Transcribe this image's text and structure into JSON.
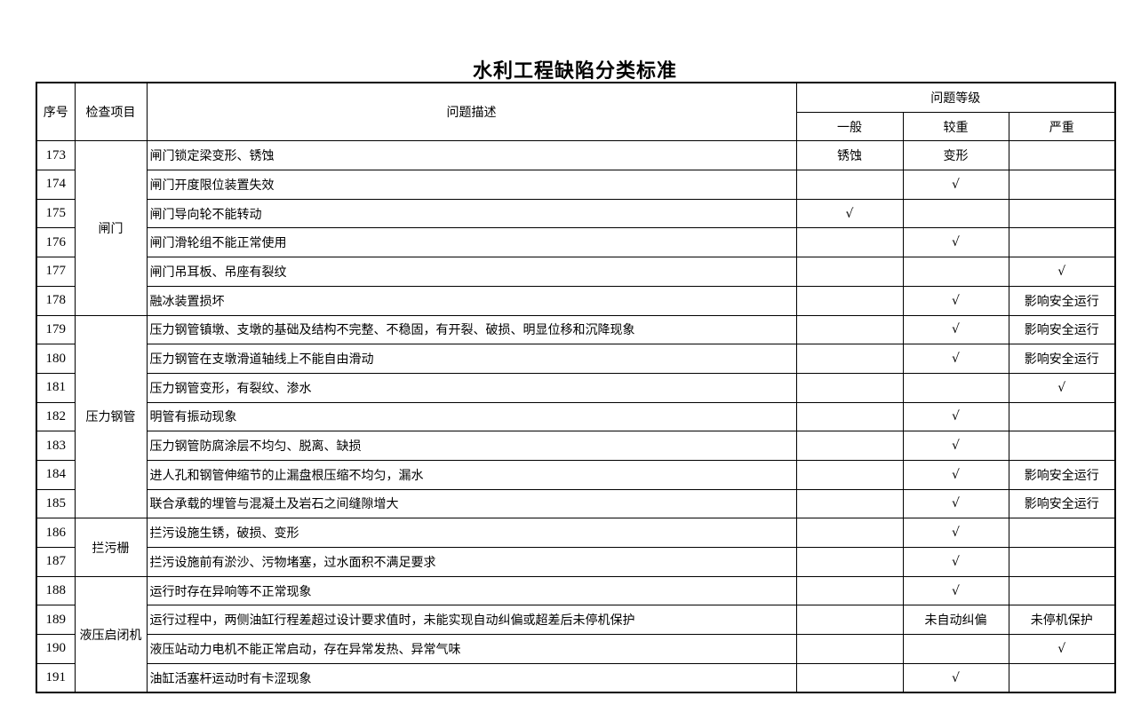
{
  "title": "水利工程缺陷分类标准",
  "headers": {
    "seq": "序号",
    "item": "检查项目",
    "desc": "问题描述",
    "level": "问题等级",
    "general": "一般",
    "serious": "较重",
    "severe": "严重"
  },
  "groups": [
    {
      "name": "闸门",
      "rows": [
        {
          "seq": "173",
          "desc": "闸门锁定梁变形、锈蚀",
          "general": "锈蚀",
          "serious": "变形",
          "severe": ""
        },
        {
          "seq": "174",
          "desc": "闸门开度限位装置失效",
          "general": "",
          "serious": "√",
          "severe": ""
        },
        {
          "seq": "175",
          "desc": "闸门导向轮不能转动",
          "general": "√",
          "serious": "",
          "severe": ""
        },
        {
          "seq": "176",
          "desc": "闸门滑轮组不能正常使用",
          "general": "",
          "serious": "√",
          "severe": ""
        },
        {
          "seq": "177",
          "desc": "闸门吊耳板、吊座有裂纹",
          "general": "",
          "serious": "",
          "severe": "√"
        },
        {
          "seq": "178",
          "desc": "融冰装置损坏",
          "general": "",
          "serious": "√",
          "severe": "影响安全运行"
        }
      ]
    },
    {
      "name": "压力钢管",
      "rows": [
        {
          "seq": "179",
          "desc": "压力钢管镇墩、支墩的基础及结构不完整、不稳固，有开裂、破损、明显位移和沉降现象",
          "general": "",
          "serious": "√",
          "severe": "影响安全运行"
        },
        {
          "seq": "180",
          "desc": "压力钢管在支墩滑道轴线上不能自由滑动",
          "general": "",
          "serious": "√",
          "severe": "影响安全运行"
        },
        {
          "seq": "181",
          "desc": "压力钢管变形，有裂纹、渗水",
          "general": "",
          "serious": "",
          "severe": "√"
        },
        {
          "seq": "182",
          "desc": "明管有振动现象",
          "general": "",
          "serious": "√",
          "severe": ""
        },
        {
          "seq": "183",
          "desc": "压力钢管防腐涂层不均匀、脱离、缺损",
          "general": "",
          "serious": "√",
          "severe": ""
        },
        {
          "seq": "184",
          "desc": "进人孔和钢管伸缩节的止漏盘根压缩不均匀，漏水",
          "general": "",
          "serious": "√",
          "severe": "影响安全运行"
        },
        {
          "seq": "185",
          "desc": "联合承载的埋管与混凝土及岩石之间缝隙增大",
          "general": "",
          "serious": "√",
          "severe": "影响安全运行"
        }
      ]
    },
    {
      "name": "拦污栅",
      "rows": [
        {
          "seq": "186",
          "desc": "拦污设施生锈，破损、变形",
          "general": "",
          "serious": "√",
          "severe": ""
        },
        {
          "seq": "187",
          "desc": "拦污设施前有淤沙、污物堵塞，过水面积不满足要求",
          "general": "",
          "serious": "√",
          "severe": ""
        }
      ]
    },
    {
      "name": "液压启闭机",
      "rows": [
        {
          "seq": "188",
          "desc": "运行时存在异响等不正常现象",
          "general": "",
          "serious": "√",
          "severe": ""
        },
        {
          "seq": "189",
          "desc": "运行过程中，两侧油缸行程差超过设计要求值时，未能实现自动纠偏或超差后未停机保护",
          "general": "",
          "serious": "未自动纠偏",
          "severe": "未停机保护"
        },
        {
          "seq": "190",
          "desc": "液压站动力电机不能正常启动，存在异常发热、异常气味",
          "general": "",
          "serious": "",
          "severe": "√"
        },
        {
          "seq": "191",
          "desc": "油缸活塞杆运动时有卡涩现象",
          "general": "",
          "serious": "√",
          "severe": ""
        }
      ]
    }
  ]
}
